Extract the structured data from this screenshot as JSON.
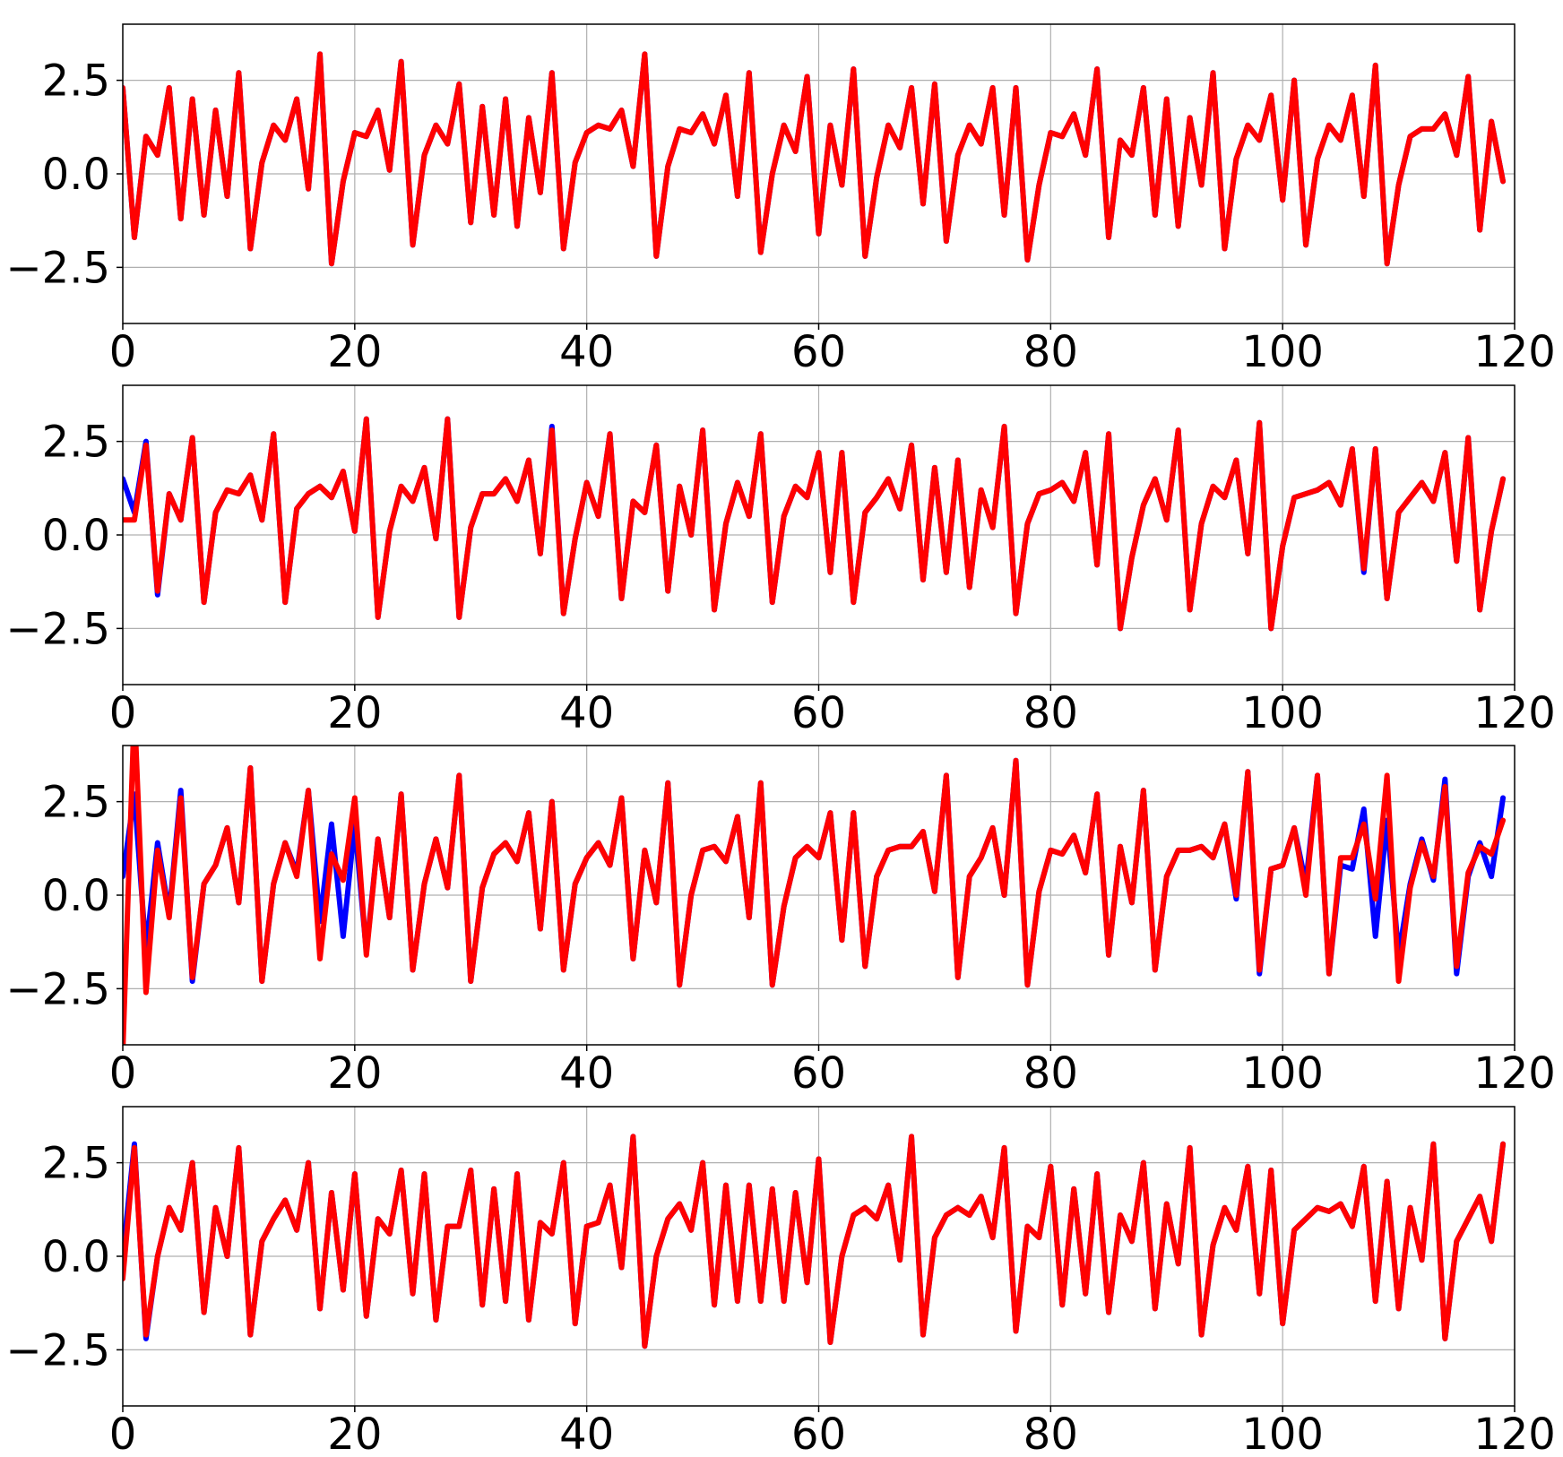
{
  "colors": {
    "series_a": "#0000ff",
    "series_b": "#ff0000",
    "grid": "#b0b0b0",
    "frame": "#000000"
  },
  "chart_data": [
    {
      "type": "line",
      "xlim": [
        0,
        120
      ],
      "ylim": [
        -4,
        4
      ],
      "xticks": [
        0,
        20,
        40,
        60,
        80,
        100,
        120
      ],
      "yticks": [
        2.5,
        0.0,
        -2.5
      ],
      "xtick_labels": [
        "0",
        "20",
        "40",
        "60",
        "80",
        "100",
        "120"
      ],
      "ytick_labels": [
        "2.5",
        "0.0",
        "−2.5"
      ],
      "grid": true,
      "series": [
        {
          "color": "#0000ff",
          "values": [
            2.3,
            -1.7,
            1.0,
            0.5,
            2.3,
            -1.2,
            2.0,
            -1.1,
            1.7,
            -0.6,
            2.7,
            -2.0,
            0.3,
            1.3,
            0.9,
            2.0,
            -0.4,
            3.2,
            -2.4,
            -0.2,
            1.1,
            1.0,
            1.7,
            0.1,
            3.0,
            -1.9,
            0.5,
            1.3,
            0.8,
            2.4,
            -1.3,
            1.8,
            -1.1,
            2.0,
            -1.4,
            1.5,
            -0.5,
            2.7,
            -2.0,
            0.3,
            1.1,
            1.3,
            1.2,
            1.7,
            0.2,
            3.2,
            -2.2,
            0.2,
            1.2,
            1.1,
            1.6,
            0.8,
            2.1,
            -0.6,
            2.7,
            -2.1,
            0.0,
            1.3,
            0.6,
            2.6,
            -1.6,
            1.3,
            -0.3,
            2.8,
            -2.2,
            -0.1,
            1.3,
            0.7,
            2.3,
            -0.8,
            2.4,
            -1.8,
            0.5,
            1.3,
            0.8,
            2.3,
            -1.1,
            2.3,
            -2.3,
            -0.3,
            1.1,
            1.0,
            1.6,
            0.5,
            2.8,
            -1.7,
            0.9,
            0.5,
            2.3,
            -1.1,
            2.0,
            -1.4,
            1.5,
            -0.3,
            2.7,
            -2.0,
            0.4,
            1.3,
            0.9,
            2.1,
            -0.7,
            2.5,
            -1.9,
            0.4,
            1.3,
            0.9,
            2.1,
            -0.6,
            2.9,
            -2.4,
            -0.3,
            1.0,
            1.2,
            1.2,
            1.6,
            0.5,
            2.6,
            -1.5,
            1.4,
            -0.2
          ]
        },
        {
          "color": "#ff0000",
          "values": [
            2.3,
            -1.7,
            1.0,
            0.5,
            2.3,
            -1.2,
            2.0,
            -1.1,
            1.7,
            -0.6,
            2.7,
            -2.0,
            0.3,
            1.3,
            0.9,
            2.0,
            -0.4,
            3.2,
            -2.4,
            -0.2,
            1.1,
            1.0,
            1.7,
            0.1,
            3.0,
            -1.9,
            0.5,
            1.3,
            0.8,
            2.4,
            -1.3,
            1.8,
            -1.1,
            2.0,
            -1.4,
            1.5,
            -0.5,
            2.7,
            -2.0,
            0.3,
            1.1,
            1.3,
            1.2,
            1.7,
            0.2,
            3.2,
            -2.2,
            0.2,
            1.2,
            1.1,
            1.6,
            0.8,
            2.1,
            -0.6,
            2.7,
            -2.1,
            0.0,
            1.3,
            0.6,
            2.6,
            -1.6,
            1.3,
            -0.3,
            2.8,
            -2.2,
            -0.1,
            1.3,
            0.7,
            2.3,
            -0.8,
            2.4,
            -1.8,
            0.5,
            1.3,
            0.8,
            2.3,
            -1.1,
            2.3,
            -2.3,
            -0.3,
            1.1,
            1.0,
            1.6,
            0.5,
            2.8,
            -1.7,
            0.9,
            0.5,
            2.3,
            -1.1,
            2.0,
            -1.4,
            1.5,
            -0.3,
            2.7,
            -2.0,
            0.4,
            1.3,
            0.9,
            2.1,
            -0.7,
            2.5,
            -1.9,
            0.4,
            1.3,
            0.9,
            2.1,
            -0.6,
            2.9,
            -2.4,
            -0.3,
            1.0,
            1.2,
            1.2,
            1.6,
            0.5,
            2.6,
            -1.5,
            1.4,
            -0.2
          ]
        }
      ]
    },
    {
      "type": "line",
      "xlim": [
        0,
        120
      ],
      "ylim": [
        -4,
        4
      ],
      "xticks": [
        0,
        20,
        40,
        60,
        80,
        100,
        120
      ],
      "yticks": [
        2.5,
        0.0,
        -2.5
      ],
      "xtick_labels": [
        "0",
        "20",
        "40",
        "60",
        "80",
        "100",
        "120"
      ],
      "ytick_labels": [
        "2.5",
        "0.0",
        "−2.5"
      ],
      "grid": true,
      "series": [
        {
          "color": "#0000ff",
          "values": [
            1.5,
            0.6,
            2.5,
            -1.6,
            1.1,
            0.4,
            2.6,
            -1.8,
            0.6,
            1.2,
            1.1,
            1.6,
            0.4,
            2.7,
            -1.8,
            0.7,
            1.1,
            1.3,
            1.0,
            1.7,
            0.1,
            3.1,
            -2.2,
            0.1,
            1.3,
            0.9,
            1.8,
            -0.1,
            3.1,
            -2.2,
            0.2,
            1.1,
            1.1,
            1.5,
            0.9,
            2.0,
            -0.5,
            2.9,
            -2.1,
            -0.1,
            1.4,
            0.5,
            2.7,
            -1.7,
            0.9,
            0.6,
            2.4,
            -1.5,
            1.3,
            0.0,
            2.8,
            -2.0,
            0.3,
            1.4,
            0.5,
            2.7,
            -1.8,
            0.5,
            1.3,
            1.0,
            2.2,
            -1.0,
            2.2,
            -1.8,
            0.6,
            1.0,
            1.5,
            0.7,
            2.4,
            -1.2,
            1.8,
            -1.0,
            2.0,
            -1.4,
            1.2,
            0.2,
            2.9,
            -2.1,
            0.3,
            1.1,
            1.2,
            1.4,
            0.9,
            2.2,
            -0.8,
            2.7,
            -2.5,
            -0.6,
            0.8,
            1.5,
            0.4,
            2.8,
            -2.0,
            0.3,
            1.3,
            1.0,
            2.0,
            -0.5,
            3.0,
            -2.5,
            -0.3,
            1.0,
            1.1,
            1.2,
            1.4,
            0.8,
            2.3,
            -1.0,
            2.3,
            -1.7,
            0.6,
            1.0,
            1.4,
            0.9,
            2.2,
            -0.7,
            2.6,
            -2.0,
            0.1,
            1.5
          ]
        },
        {
          "color": "#ff0000",
          "values": [
            0.4,
            0.4,
            2.4,
            -1.5,
            1.1,
            0.4,
            2.6,
            -1.8,
            0.6,
            1.2,
            1.1,
            1.6,
            0.4,
            2.7,
            -1.8,
            0.7,
            1.1,
            1.3,
            1.0,
            1.7,
            0.1,
            3.1,
            -2.2,
            0.1,
            1.3,
            0.9,
            1.8,
            -0.1,
            3.1,
            -2.2,
            0.2,
            1.1,
            1.1,
            1.5,
            0.9,
            2.0,
            -0.5,
            2.8,
            -2.1,
            -0.1,
            1.4,
            0.5,
            2.7,
            -1.7,
            0.9,
            0.6,
            2.4,
            -1.5,
            1.3,
            0.0,
            2.8,
            -2.0,
            0.3,
            1.4,
            0.5,
            2.7,
            -1.8,
            0.5,
            1.3,
            1.0,
            2.2,
            -1.0,
            2.2,
            -1.8,
            0.6,
            1.0,
            1.5,
            0.7,
            2.4,
            -1.2,
            1.8,
            -1.0,
            2.0,
            -1.4,
            1.2,
            0.2,
            2.9,
            -2.1,
            0.3,
            1.1,
            1.2,
            1.4,
            0.9,
            2.2,
            -0.8,
            2.7,
            -2.5,
            -0.6,
            0.8,
            1.5,
            0.4,
            2.8,
            -2.0,
            0.3,
            1.3,
            1.0,
            2.0,
            -0.5,
            3.0,
            -2.5,
            -0.3,
            1.0,
            1.1,
            1.2,
            1.4,
            0.8,
            2.3,
            -0.9,
            2.3,
            -1.7,
            0.6,
            1.0,
            1.4,
            0.9,
            2.2,
            -0.7,
            2.6,
            -2.0,
            0.1,
            1.5
          ]
        }
      ]
    },
    {
      "type": "line",
      "xlim": [
        0,
        120
      ],
      "ylim": [
        -4,
        4
      ],
      "xticks": [
        0,
        20,
        40,
        60,
        80,
        100,
        120
      ],
      "yticks": [
        2.5,
        0.0,
        -2.5
      ],
      "xtick_labels": [
        "0",
        "20",
        "40",
        "60",
        "80",
        "100",
        "120"
      ],
      "ytick_labels": [
        "2.5",
        "0.0",
        "−2.5"
      ],
      "grid": true,
      "series": [
        {
          "color": "#0000ff",
          "values": [
            0.5,
            2.7,
            -1.5,
            1.4,
            -0.5,
            2.8,
            -2.3,
            0.3,
            0.8,
            1.8,
            -0.2,
            3.4,
            -2.3,
            0.3,
            1.4,
            0.6,
            2.8,
            -0.7,
            1.9,
            -1.1,
            1.9,
            -1.5,
            1.5,
            -0.6,
            2.7,
            -2.0,
            0.3,
            1.5,
            0.2,
            3.2,
            -2.3,
            0.2,
            1.1,
            1.4,
            0.9,
            2.2,
            -0.9,
            2.5,
            -2.0,
            0.3,
            1.0,
            1.4,
            0.8,
            2.6,
            -1.7,
            1.2,
            -0.2,
            3.0,
            -2.4,
            0.0,
            1.2,
            1.3,
            0.9,
            2.1,
            -0.6,
            3.0,
            -2.4,
            -0.3,
            1.0,
            1.3,
            1.0,
            2.2,
            -1.2,
            2.2,
            -1.9,
            0.5,
            1.2,
            1.3,
            1.3,
            1.7,
            0.1,
            3.2,
            -2.2,
            0.5,
            1.0,
            1.8,
            0.0,
            3.6,
            -2.4,
            0.1,
            1.2,
            1.1,
            1.6,
            0.6,
            2.7,
            -1.6,
            1.3,
            -0.2,
            2.8,
            -2.0,
            0.5,
            1.2,
            1.2,
            1.3,
            1.0,
            1.9,
            -0.1,
            3.3,
            -2.1,
            0.7,
            0.8,
            1.8,
            0.3,
            3.2,
            -2.1,
            0.8,
            0.7,
            2.3,
            -1.1,
            2.0,
            -1.6,
            0.3,
            1.5,
            0.4,
            3.1,
            -2.1,
            0.5,
            1.4,
            0.5,
            2.6
          ]
        },
        {
          "color": "#ff0000",
          "values": [
            -4.2,
            5.0,
            -2.6,
            1.2,
            -0.6,
            2.6,
            -2.2,
            0.3,
            0.8,
            1.8,
            -0.2,
            3.4,
            -2.3,
            0.3,
            1.4,
            0.5,
            2.8,
            -1.7,
            1.1,
            0.4,
            2.6,
            -1.6,
            1.5,
            -0.6,
            2.7,
            -2.0,
            0.3,
            1.5,
            0.2,
            3.2,
            -2.3,
            0.2,
            1.1,
            1.4,
            0.9,
            2.2,
            -0.9,
            2.5,
            -2.0,
            0.3,
            1.0,
            1.4,
            0.8,
            2.6,
            -1.7,
            1.2,
            -0.2,
            3.0,
            -2.4,
            0.0,
            1.2,
            1.3,
            0.9,
            2.1,
            -0.6,
            3.0,
            -2.4,
            -0.3,
            1.0,
            1.3,
            1.0,
            2.2,
            -1.2,
            2.2,
            -1.9,
            0.5,
            1.2,
            1.3,
            1.3,
            1.7,
            0.1,
            3.2,
            -2.2,
            0.5,
            1.0,
            1.8,
            0.0,
            3.6,
            -2.4,
            0.1,
            1.2,
            1.1,
            1.6,
            0.6,
            2.7,
            -1.6,
            1.3,
            -0.2,
            2.8,
            -2.0,
            0.5,
            1.2,
            1.2,
            1.3,
            1.0,
            1.9,
            0.0,
            3.3,
            -2.0,
            0.7,
            0.8,
            1.8,
            0.0,
            3.2,
            -2.1,
            1.0,
            1.0,
            1.9,
            -0.1,
            3.2,
            -2.3,
            0.2,
            1.4,
            0.5,
            2.9,
            -1.9,
            0.6,
            1.3,
            1.1,
            2.0
          ]
        }
      ]
    },
    {
      "type": "line",
      "xlim": [
        0,
        120
      ],
      "ylim": [
        -4,
        4
      ],
      "xticks": [
        0,
        20,
        40,
        60,
        80,
        100,
        120
      ],
      "yticks": [
        2.5,
        0.0,
        -2.5
      ],
      "xtick_labels": [
        "0",
        "20",
        "40",
        "60",
        "80",
        "100",
        "120"
      ],
      "ytick_labels": [
        "2.5",
        "0.0",
        "−2.5"
      ],
      "grid": true,
      "series": [
        {
          "color": "#0000ff",
          "values": [
            0.0,
            3.0,
            -2.2,
            0.0,
            1.3,
            0.7,
            2.5,
            -1.5,
            1.3,
            0.0,
            2.9,
            -2.1,
            0.4,
            1.0,
            1.5,
            0.7,
            2.5,
            -1.4,
            1.7,
            -0.9,
            2.2,
            -1.6,
            1.0,
            0.6,
            2.3,
            -1.0,
            2.2,
            -1.7,
            0.8,
            0.8,
            2.3,
            -1.3,
            1.8,
            -1.2,
            2.2,
            -1.7,
            0.9,
            0.6,
            2.5,
            -1.8,
            0.8,
            0.9,
            1.9,
            -0.3,
            3.2,
            -2.4,
            0.0,
            1.0,
            1.4,
            0.7,
            2.5,
            -1.3,
            1.9,
            -1.2,
            1.9,
            -1.2,
            1.8,
            -1.2,
            1.7,
            -0.7,
            2.6,
            -2.3,
            0.0,
            1.1,
            1.3,
            1.0,
            1.9,
            -0.1,
            3.2,
            -2.1,
            0.5,
            1.1,
            1.3,
            1.1,
            1.6,
            0.5,
            2.9,
            -2.0,
            0.8,
            0.5,
            2.4,
            -1.3,
            1.8,
            -1.0,
            2.2,
            -1.5,
            1.1,
            0.4,
            2.5,
            -1.4,
            1.4,
            -0.2,
            2.9,
            -2.1,
            0.3,
            1.3,
            0.7,
            2.4,
            -1.0,
            2.3,
            -1.8,
            0.7,
            1.0,
            1.3,
            1.2,
            1.4,
            0.8,
            2.4,
            -1.2,
            2.0,
            -1.4,
            1.3,
            -0.1,
            3.0,
            -2.2,
            0.4,
            1.0,
            1.6,
            0.4,
            3.0
          ]
        },
        {
          "color": "#ff0000",
          "values": [
            -0.6,
            2.9,
            -2.1,
            0.0,
            1.3,
            0.7,
            2.5,
            -1.5,
            1.3,
            0.0,
            2.9,
            -2.1,
            0.4,
            1.0,
            1.5,
            0.7,
            2.5,
            -1.4,
            1.7,
            -0.9,
            2.2,
            -1.6,
            1.0,
            0.6,
            2.3,
            -1.0,
            2.2,
            -1.7,
            0.8,
            0.8,
            2.3,
            -1.3,
            1.8,
            -1.2,
            2.2,
            -1.7,
            0.9,
            0.6,
            2.5,
            -1.8,
            0.8,
            0.9,
            1.9,
            -0.3,
            3.2,
            -2.4,
            0.0,
            1.0,
            1.4,
            0.7,
            2.5,
            -1.3,
            1.9,
            -1.2,
            1.9,
            -1.2,
            1.8,
            -1.2,
            1.7,
            -0.7,
            2.6,
            -2.3,
            0.0,
            1.1,
            1.3,
            1.0,
            1.9,
            -0.1,
            3.2,
            -2.1,
            0.5,
            1.1,
            1.3,
            1.1,
            1.6,
            0.5,
            2.9,
            -2.0,
            0.8,
            0.5,
            2.4,
            -1.3,
            1.8,
            -1.0,
            2.2,
            -1.5,
            1.1,
            0.4,
            2.5,
            -1.4,
            1.4,
            -0.2,
            2.9,
            -2.1,
            0.3,
            1.3,
            0.7,
            2.4,
            -1.0,
            2.3,
            -1.8,
            0.7,
            1.0,
            1.3,
            1.2,
            1.4,
            0.8,
            2.4,
            -1.2,
            2.0,
            -1.4,
            1.3,
            -0.1,
            3.0,
            -2.2,
            0.4,
            1.0,
            1.6,
            0.4,
            3.0
          ]
        }
      ]
    }
  ]
}
